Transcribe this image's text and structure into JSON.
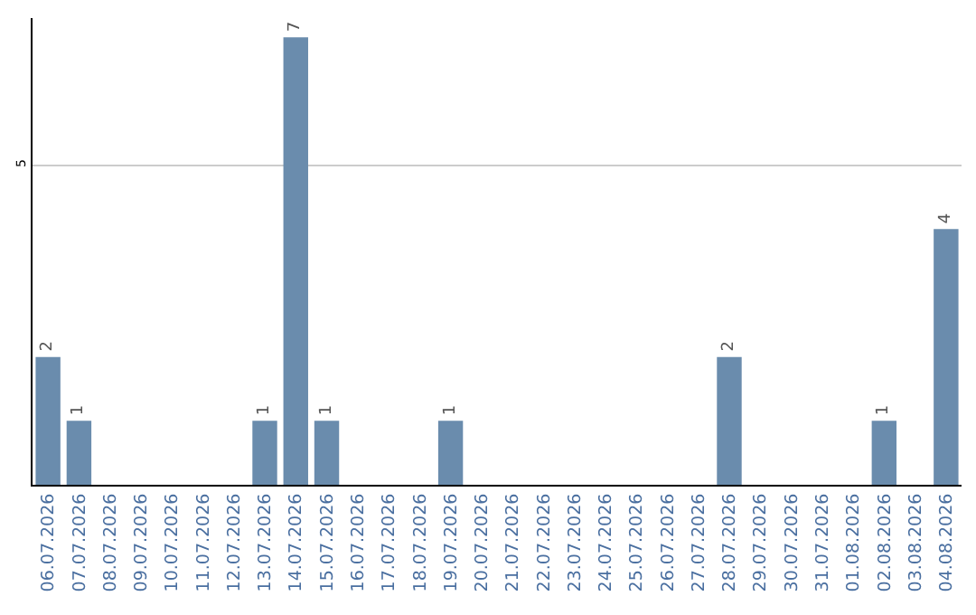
{
  "chart_data": {
    "type": "bar",
    "categories": [
      "06.07.2026",
      "07.07.2026",
      "08.07.2026",
      "09.07.2026",
      "10.07.2026",
      "11.07.2026",
      "12.07.2026",
      "13.07.2026",
      "14.07.2026",
      "15.07.2026",
      "16.07.2026",
      "17.07.2026",
      "18.07.2026",
      "19.07.2026",
      "20.07.2026",
      "21.07.2026",
      "22.07.2026",
      "23.07.2026",
      "24.07.2026",
      "25.07.2026",
      "26.07.2026",
      "27.07.2026",
      "28.07.2026",
      "29.07.2026",
      "30.07.2026",
      "31.07.2026",
      "01.08.2026",
      "02.08.2026",
      "03.08.2026",
      "04.08.2026"
    ],
    "values": [
      2,
      1,
      0,
      0,
      0,
      0,
      0,
      1,
      7,
      1,
      0,
      0,
      0,
      1,
      0,
      0,
      0,
      0,
      0,
      0,
      0,
      0,
      2,
      0,
      0,
      0,
      0,
      1,
      0,
      4
    ],
    "value_labels": [
      "2",
      "1",
      null,
      null,
      null,
      null,
      null,
      "1",
      "7",
      "1",
      null,
      null,
      null,
      "1",
      null,
      null,
      null,
      null,
      null,
      null,
      null,
      null,
      "2",
      null,
      null,
      null,
      null,
      "1",
      null,
      "4"
    ],
    "color": "#6a8cad",
    "ylim": [
      0,
      7.3
    ],
    "yticks": [
      5
    ],
    "grid": "y"
  }
}
